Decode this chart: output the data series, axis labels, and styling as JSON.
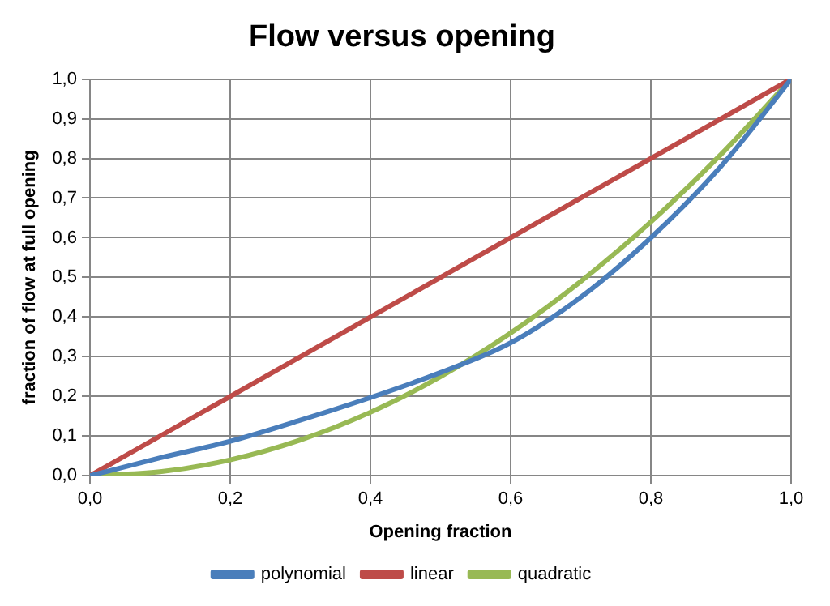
{
  "chart_data": {
    "type": "line",
    "title": "Flow versus opening",
    "xlabel": "Opening fraction",
    "ylabel": "fraction of flow at full opening",
    "x": [
      0,
      0.1,
      0.2,
      0.3,
      0.4,
      0.5,
      0.6,
      0.7,
      0.8,
      0.9,
      1
    ],
    "series": [
      {
        "name": "polynomial",
        "color": "#4a7ebb",
        "values": [
          0,
          0.045,
          0.087,
          0.14,
          0.197,
          0.26,
          0.335,
          0.45,
          0.6,
          0.78,
          1
        ]
      },
      {
        "name": "linear",
        "color": "#be4b48",
        "values": [
          0,
          0.1,
          0.2,
          0.3,
          0.4,
          0.5,
          0.6,
          0.7,
          0.8,
          0.9,
          1
        ]
      },
      {
        "name": "quadratic",
        "color": "#98b954",
        "values": [
          0,
          0.01,
          0.04,
          0.09,
          0.16,
          0.25,
          0.36,
          0.49,
          0.64,
          0.81,
          1
        ]
      }
    ],
    "xlim": [
      0,
      1
    ],
    "xticks": [
      {
        "value": 0,
        "label": "0,0"
      },
      {
        "value": 0.2,
        "label": "0,2"
      },
      {
        "value": 0.4,
        "label": "0,4"
      },
      {
        "value": 0.6,
        "label": "0,6"
      },
      {
        "value": 0.8,
        "label": "0,8"
      },
      {
        "value": 1,
        "label": "1,0"
      }
    ],
    "ylim": [
      0,
      1
    ],
    "yticks": [
      {
        "value": 0,
        "label": "0,0"
      },
      {
        "value": 0.1,
        "label": "0,1"
      },
      {
        "value": 0.2,
        "label": "0,2"
      },
      {
        "value": 0.3,
        "label": "0,3"
      },
      {
        "value": 0.4,
        "label": "0,4"
      },
      {
        "value": 0.5,
        "label": "0,5"
      },
      {
        "value": 0.6,
        "label": "0,6"
      },
      {
        "value": 0.7,
        "label": "0,7"
      },
      {
        "value": 0.8,
        "label": "0,8"
      },
      {
        "value": 0.9,
        "label": "0,9"
      },
      {
        "value": 1,
        "label": "1,0"
      }
    ],
    "grid": true,
    "legend": "bottom",
    "marker": "none",
    "line_style": "solid"
  }
}
